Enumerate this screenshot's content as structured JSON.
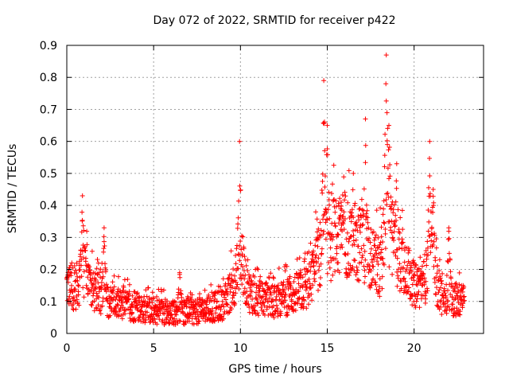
{
  "chart_data": {
    "type": "scatter",
    "title": "Day 072 of 2022, SRMTID for receiver p422",
    "xlabel": "GPS time / hours",
    "ylabel": "SRMTID / TECUs",
    "xlim": [
      0,
      24
    ],
    "ylim": [
      0,
      0.9
    ],
    "xticks": [
      0,
      5,
      10,
      15,
      20
    ],
    "yticks": [
      0,
      0.1,
      0.2,
      0.3,
      0.4,
      0.5,
      0.6,
      0.7,
      0.8,
      0.9
    ],
    "grid": true,
    "marker": "plus",
    "color": "#ff0000",
    "baseline": [
      [
        0.0,
        0.15
      ],
      [
        0.5,
        0.14
      ],
      [
        1.0,
        0.2
      ],
      [
        1.5,
        0.13
      ],
      [
        2.0,
        0.12
      ],
      [
        2.5,
        0.1
      ],
      [
        3.0,
        0.09
      ],
      [
        4.0,
        0.08
      ],
      [
        5.0,
        0.07
      ],
      [
        6.0,
        0.065
      ],
      [
        7.0,
        0.065
      ],
      [
        8.0,
        0.075
      ],
      [
        9.0,
        0.09
      ],
      [
        9.5,
        0.14
      ],
      [
        10.0,
        0.22
      ],
      [
        10.5,
        0.13
      ],
      [
        11.0,
        0.11
      ],
      [
        12.0,
        0.1
      ],
      [
        13.0,
        0.12
      ],
      [
        14.0,
        0.15
      ],
      [
        14.5,
        0.24
      ],
      [
        15.0,
        0.28
      ],
      [
        16.0,
        0.32
      ],
      [
        16.5,
        0.27
      ],
      [
        17.0,
        0.28
      ],
      [
        18.0,
        0.2
      ],
      [
        18.5,
        0.35
      ],
      [
        19.0,
        0.25
      ],
      [
        19.5,
        0.22
      ],
      [
        20.0,
        0.15
      ],
      [
        20.5,
        0.15
      ],
      [
        21.0,
        0.23
      ],
      [
        21.5,
        0.12
      ],
      [
        22.0,
        0.11
      ],
      [
        22.9,
        0.1
      ]
    ],
    "peaks": [
      {
        "x": 0.9,
        "y": 0.43
      },
      {
        "x": 2.15,
        "y": 0.33
      },
      {
        "x": 6.5,
        "y": 0.19
      },
      {
        "x": 9.95,
        "y": 0.6
      },
      {
        "x": 14.8,
        "y": 0.79
      },
      {
        "x": 15.0,
        "y": 0.65
      },
      {
        "x": 15.8,
        "y": 0.41
      },
      {
        "x": 16.5,
        "y": 0.5
      },
      {
        "x": 17.2,
        "y": 0.67
      },
      {
        "x": 18.4,
        "y": 0.87
      },
      {
        "x": 18.55,
        "y": 0.65
      },
      {
        "x": 19.0,
        "y": 0.53
      },
      {
        "x": 20.9,
        "y": 0.6
      },
      {
        "x": 21.1,
        "y": 0.45
      },
      {
        "x": 22.0,
        "y": 0.33
      }
    ],
    "time_range_hours": [
      0,
      22.9
    ]
  }
}
